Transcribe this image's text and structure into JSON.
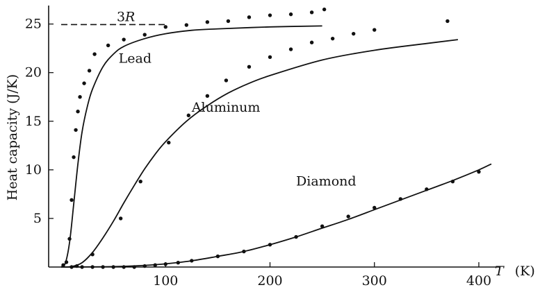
{
  "chart_data": {
    "type": "scatter",
    "ylabel": "Heat capacity (J/K)",
    "xlabel": {
      "symbol": "T",
      "unit": "(K)"
    },
    "xlim": [
      -12,
      412
    ],
    "ylim": [
      0,
      26.9
    ],
    "x_ticks": [
      100,
      200,
      300,
      400
    ],
    "y_ticks": [
      5,
      10,
      15,
      20,
      25
    ],
    "grid": false,
    "reference_line": {
      "label": "3R",
      "label_main": "3",
      "label_var": "R",
      "y": 24.94,
      "x_range": [
        0,
        100
      ]
    },
    "series": [
      {
        "name": "Lead",
        "label_at": {
          "x": 55,
          "y": 21.0
        },
        "curve": [
          [
            0,
            0
          ],
          [
            4,
            0.4
          ],
          [
            8,
            2.5
          ],
          [
            12,
            6.5
          ],
          [
            16,
            10.6
          ],
          [
            20,
            13.9
          ],
          [
            25,
            16.5
          ],
          [
            30,
            18.3
          ],
          [
            40,
            20.6
          ],
          [
            50,
            21.9
          ],
          [
            60,
            22.7
          ],
          [
            80,
            23.5
          ],
          [
            100,
            24.0
          ],
          [
            125,
            24.35
          ],
          [
            150,
            24.5
          ],
          [
            200,
            24.7
          ],
          [
            250,
            24.8
          ]
        ],
        "points": [
          [
            2,
            0.2
          ],
          [
            5,
            0.5
          ],
          [
            8,
            2.9
          ],
          [
            10,
            6.9
          ],
          [
            12,
            11.3
          ],
          [
            14,
            14.1
          ],
          [
            16,
            16.0
          ],
          [
            18,
            17.5
          ],
          [
            22,
            18.9
          ],
          [
            27,
            20.2
          ],
          [
            32,
            21.9
          ],
          [
            45,
            22.8
          ],
          [
            60,
            23.4
          ],
          [
            80,
            23.9
          ],
          [
            100,
            24.7
          ],
          [
            120,
            24.9
          ],
          [
            140,
            25.2
          ],
          [
            160,
            25.3
          ],
          [
            180,
            25.7
          ],
          [
            200,
            25.9
          ],
          [
            220,
            26.0
          ],
          [
            240,
            26.2
          ],
          [
            252,
            26.5
          ]
        ]
      },
      {
        "name": "Aluminum",
        "label_at": {
          "x": 125,
          "y": 16.0
        },
        "curve": [
          [
            0,
            0
          ],
          [
            10,
            0.05
          ],
          [
            20,
            0.45
          ],
          [
            30,
            1.5
          ],
          [
            40,
            3.0
          ],
          [
            50,
            4.7
          ],
          [
            60,
            6.6
          ],
          [
            70,
            8.4
          ],
          [
            80,
            10.1
          ],
          [
            90,
            11.6
          ],
          [
            100,
            12.9
          ],
          [
            120,
            15.0
          ],
          [
            140,
            16.6
          ],
          [
            160,
            17.9
          ],
          [
            180,
            18.9
          ],
          [
            200,
            19.7
          ],
          [
            250,
            21.3
          ],
          [
            300,
            22.3
          ],
          [
            350,
            23.0
          ],
          [
            380,
            23.4
          ]
        ],
        "points": [
          [
            15,
            0.1
          ],
          [
            30,
            1.3
          ],
          [
            57,
            5.0
          ],
          [
            76,
            8.8
          ],
          [
            103,
            12.8
          ],
          [
            122,
            15.6
          ],
          [
            140,
            17.6
          ],
          [
            158,
            19.2
          ],
          [
            180,
            20.6
          ],
          [
            200,
            21.6
          ],
          [
            220,
            22.4
          ],
          [
            240,
            23.1
          ],
          [
            260,
            23.5
          ],
          [
            280,
            24.0
          ],
          [
            300,
            24.4
          ],
          [
            370,
            25.3
          ]
        ]
      },
      {
        "name": "Diamond",
        "label_at": {
          "x": 225,
          "y": 8.4
        },
        "curve": [
          [
            0,
            0
          ],
          [
            50,
            0.04
          ],
          [
            80,
            0.17
          ],
          [
            100,
            0.33
          ],
          [
            125,
            0.64
          ],
          [
            150,
            1.1
          ],
          [
            175,
            1.6
          ],
          [
            200,
            2.3
          ],
          [
            225,
            3.1
          ],
          [
            250,
            4.0
          ],
          [
            275,
            4.9
          ],
          [
            300,
            5.9
          ],
          [
            325,
            6.9
          ],
          [
            350,
            7.9
          ],
          [
            375,
            8.9
          ],
          [
            400,
            10.0
          ],
          [
            412,
            10.6
          ]
        ],
        "points": [
          [
            10,
            0
          ],
          [
            20,
            0
          ],
          [
            30,
            0
          ],
          [
            40,
            0
          ],
          [
            50,
            0
          ],
          [
            60,
            0
          ],
          [
            70,
            0
          ],
          [
            80,
            0.1
          ],
          [
            90,
            0.2
          ],
          [
            100,
            0.3
          ],
          [
            112,
            0.45
          ],
          [
            125,
            0.65
          ],
          [
            150,
            1.1
          ],
          [
            175,
            1.6
          ],
          [
            200,
            2.3
          ],
          [
            225,
            3.1
          ],
          [
            250,
            4.2
          ],
          [
            275,
            5.2
          ],
          [
            300,
            6.1
          ],
          [
            325,
            7.0
          ],
          [
            350,
            8.0
          ],
          [
            375,
            8.8
          ],
          [
            400,
            9.8
          ]
        ]
      }
    ]
  }
}
